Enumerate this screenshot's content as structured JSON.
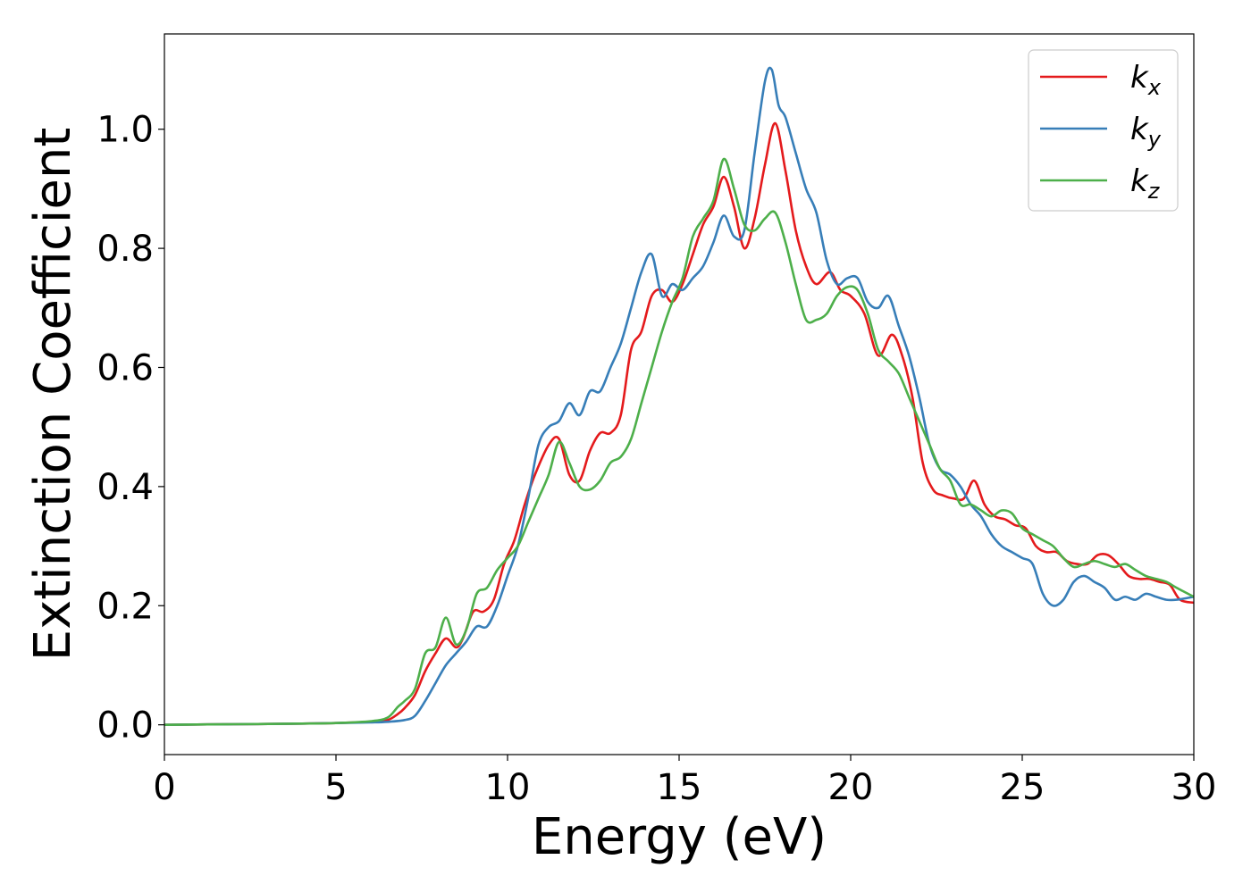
{
  "chart_data": {
    "type": "line",
    "xlabel": "Energy (eV)",
    "ylabel": "Extinction Coefficient",
    "xlim": [
      0,
      30
    ],
    "ylim": [
      -0.05,
      1.16
    ],
    "xticks": [
      0,
      5,
      10,
      15,
      20,
      25,
      30
    ],
    "xtick_labels": [
      "0",
      "5",
      "10",
      "15",
      "20",
      "25",
      "30"
    ],
    "yticks": [
      0.0,
      0.2,
      0.4,
      0.6,
      0.8,
      1.0
    ],
    "ytick_labels": [
      "0.0",
      "0.2",
      "0.4",
      "0.6",
      "0.8",
      "1.0"
    ],
    "grid": false,
    "legend_position": "top-right",
    "series": [
      {
        "name": "k",
        "subscript": "x",
        "color": "#e41a1c",
        "x": [
          0,
          2,
          4,
          5,
          6,
          6.5,
          6.8,
          7.0,
          7.3,
          7.6,
          7.9,
          8.2,
          8.5,
          8.7,
          9.0,
          9.3,
          9.6,
          9.9,
          10.2,
          10.5,
          10.8,
          11.2,
          11.5,
          11.8,
          12.1,
          12.4,
          12.7,
          13.0,
          13.3,
          13.6,
          13.9,
          14.2,
          14.5,
          14.8,
          15.1,
          15.4,
          15.7,
          16.0,
          16.3,
          16.6,
          16.9,
          17.2,
          17.5,
          17.8,
          18.1,
          18.4,
          18.7,
          19.0,
          19.4,
          19.7,
          20.0,
          20.4,
          20.8,
          21.2,
          21.5,
          21.8,
          22.1,
          22.4,
          22.7,
          23.0,
          23.3,
          23.6,
          23.9,
          24.2,
          24.5,
          24.8,
          25.1,
          25.4,
          25.7,
          26.0,
          26.3,
          26.6,
          26.9,
          27.2,
          27.5,
          27.8,
          28.1,
          28.4,
          28.7,
          29.0,
          29.3,
          29.6,
          30.0
        ],
        "y": [
          0,
          0.001,
          0.002,
          0.003,
          0.005,
          0.008,
          0.018,
          0.028,
          0.05,
          0.09,
          0.12,
          0.145,
          0.13,
          0.145,
          0.19,
          0.19,
          0.21,
          0.27,
          0.31,
          0.37,
          0.42,
          0.47,
          0.48,
          0.42,
          0.41,
          0.46,
          0.49,
          0.49,
          0.52,
          0.63,
          0.66,
          0.72,
          0.73,
          0.71,
          0.74,
          0.79,
          0.84,
          0.87,
          0.92,
          0.87,
          0.8,
          0.85,
          0.94,
          1.01,
          0.93,
          0.83,
          0.77,
          0.74,
          0.76,
          0.73,
          0.72,
          0.69,
          0.62,
          0.655,
          0.62,
          0.55,
          0.44,
          0.395,
          0.385,
          0.38,
          0.38,
          0.41,
          0.37,
          0.35,
          0.345,
          0.335,
          0.33,
          0.3,
          0.29,
          0.29,
          0.275,
          0.27,
          0.27,
          0.285,
          0.285,
          0.27,
          0.25,
          0.245,
          0.245,
          0.24,
          0.235,
          0.21,
          0.205
        ]
      },
      {
        "name": "k",
        "subscript": "y",
        "color": "#377eb8",
        "x": [
          0,
          2,
          4,
          5,
          6,
          6.5,
          7.0,
          7.3,
          7.6,
          7.9,
          8.2,
          8.5,
          8.8,
          9.1,
          9.4,
          9.7,
          10.0,
          10.3,
          10.6,
          10.9,
          11.2,
          11.5,
          11.8,
          12.1,
          12.4,
          12.7,
          13.0,
          13.3,
          13.6,
          13.9,
          14.2,
          14.5,
          14.8,
          15.1,
          15.4,
          15.7,
          16.0,
          16.3,
          16.6,
          16.9,
          17.2,
          17.5,
          17.7,
          17.9,
          18.1,
          18.4,
          18.7,
          19.0,
          19.3,
          19.6,
          19.9,
          20.2,
          20.5,
          20.8,
          21.1,
          21.4,
          21.7,
          22.0,
          22.3,
          22.6,
          22.9,
          23.2,
          23.5,
          23.8,
          24.1,
          24.4,
          24.7,
          25.0,
          25.3,
          25.6,
          25.9,
          26.2,
          26.5,
          26.8,
          27.1,
          27.4,
          27.7,
          28.0,
          28.3,
          28.6,
          28.9,
          29.2,
          29.5,
          30.0
        ],
        "y": [
          0,
          0.001,
          0.002,
          0.003,
          0.004,
          0.005,
          0.008,
          0.015,
          0.04,
          0.07,
          0.1,
          0.12,
          0.14,
          0.165,
          0.165,
          0.2,
          0.25,
          0.3,
          0.38,
          0.47,
          0.5,
          0.51,
          0.54,
          0.52,
          0.56,
          0.56,
          0.6,
          0.64,
          0.7,
          0.76,
          0.79,
          0.72,
          0.74,
          0.73,
          0.75,
          0.77,
          0.81,
          0.855,
          0.82,
          0.83,
          0.96,
          1.08,
          1.1,
          1.04,
          1.02,
          0.96,
          0.9,
          0.86,
          0.78,
          0.74,
          0.75,
          0.75,
          0.71,
          0.7,
          0.72,
          0.67,
          0.62,
          0.55,
          0.47,
          0.43,
          0.42,
          0.4,
          0.37,
          0.35,
          0.32,
          0.3,
          0.29,
          0.28,
          0.27,
          0.22,
          0.2,
          0.21,
          0.24,
          0.25,
          0.24,
          0.23,
          0.21,
          0.215,
          0.21,
          0.22,
          0.215,
          0.21,
          0.21,
          0.215
        ]
      },
      {
        "name": "k",
        "subscript": "z",
        "color": "#4daf4a",
        "x": [
          0,
          2,
          4,
          5,
          6,
          6.5,
          6.8,
          7.0,
          7.3,
          7.6,
          7.9,
          8.2,
          8.5,
          8.8,
          9.1,
          9.4,
          9.7,
          10.0,
          10.3,
          10.6,
          10.9,
          11.2,
          11.5,
          11.8,
          12.1,
          12.4,
          12.7,
          13.0,
          13.3,
          13.6,
          13.9,
          14.2,
          14.5,
          14.8,
          15.1,
          15.4,
          15.7,
          16.0,
          16.3,
          16.6,
          16.9,
          17.2,
          17.5,
          17.8,
          18.1,
          18.4,
          18.7,
          19.0,
          19.3,
          19.6,
          19.9,
          20.2,
          20.5,
          20.8,
          21.1,
          21.4,
          21.7,
          22.0,
          22.3,
          22.6,
          22.9,
          23.2,
          23.5,
          23.8,
          24.1,
          24.4,
          24.7,
          25.0,
          25.3,
          25.6,
          25.9,
          26.2,
          26.5,
          26.8,
          27.1,
          27.4,
          27.7,
          28.0,
          28.3,
          28.6,
          28.9,
          29.2,
          29.5,
          30.0
        ],
        "y": [
          0,
          0.001,
          0.002,
          0.003,
          0.006,
          0.012,
          0.03,
          0.04,
          0.06,
          0.12,
          0.13,
          0.18,
          0.135,
          0.16,
          0.22,
          0.23,
          0.26,
          0.28,
          0.3,
          0.34,
          0.38,
          0.42,
          0.475,
          0.44,
          0.4,
          0.395,
          0.41,
          0.44,
          0.45,
          0.48,
          0.54,
          0.6,
          0.66,
          0.71,
          0.75,
          0.82,
          0.85,
          0.88,
          0.95,
          0.9,
          0.84,
          0.83,
          0.85,
          0.86,
          0.81,
          0.74,
          0.68,
          0.68,
          0.69,
          0.72,
          0.735,
          0.73,
          0.69,
          0.63,
          0.61,
          0.59,
          0.55,
          0.51,
          0.47,
          0.43,
          0.41,
          0.37,
          0.37,
          0.36,
          0.35,
          0.36,
          0.355,
          0.33,
          0.32,
          0.31,
          0.3,
          0.28,
          0.265,
          0.27,
          0.275,
          0.27,
          0.265,
          0.27,
          0.26,
          0.25,
          0.245,
          0.24,
          0.23,
          0.215
        ]
      }
    ]
  }
}
